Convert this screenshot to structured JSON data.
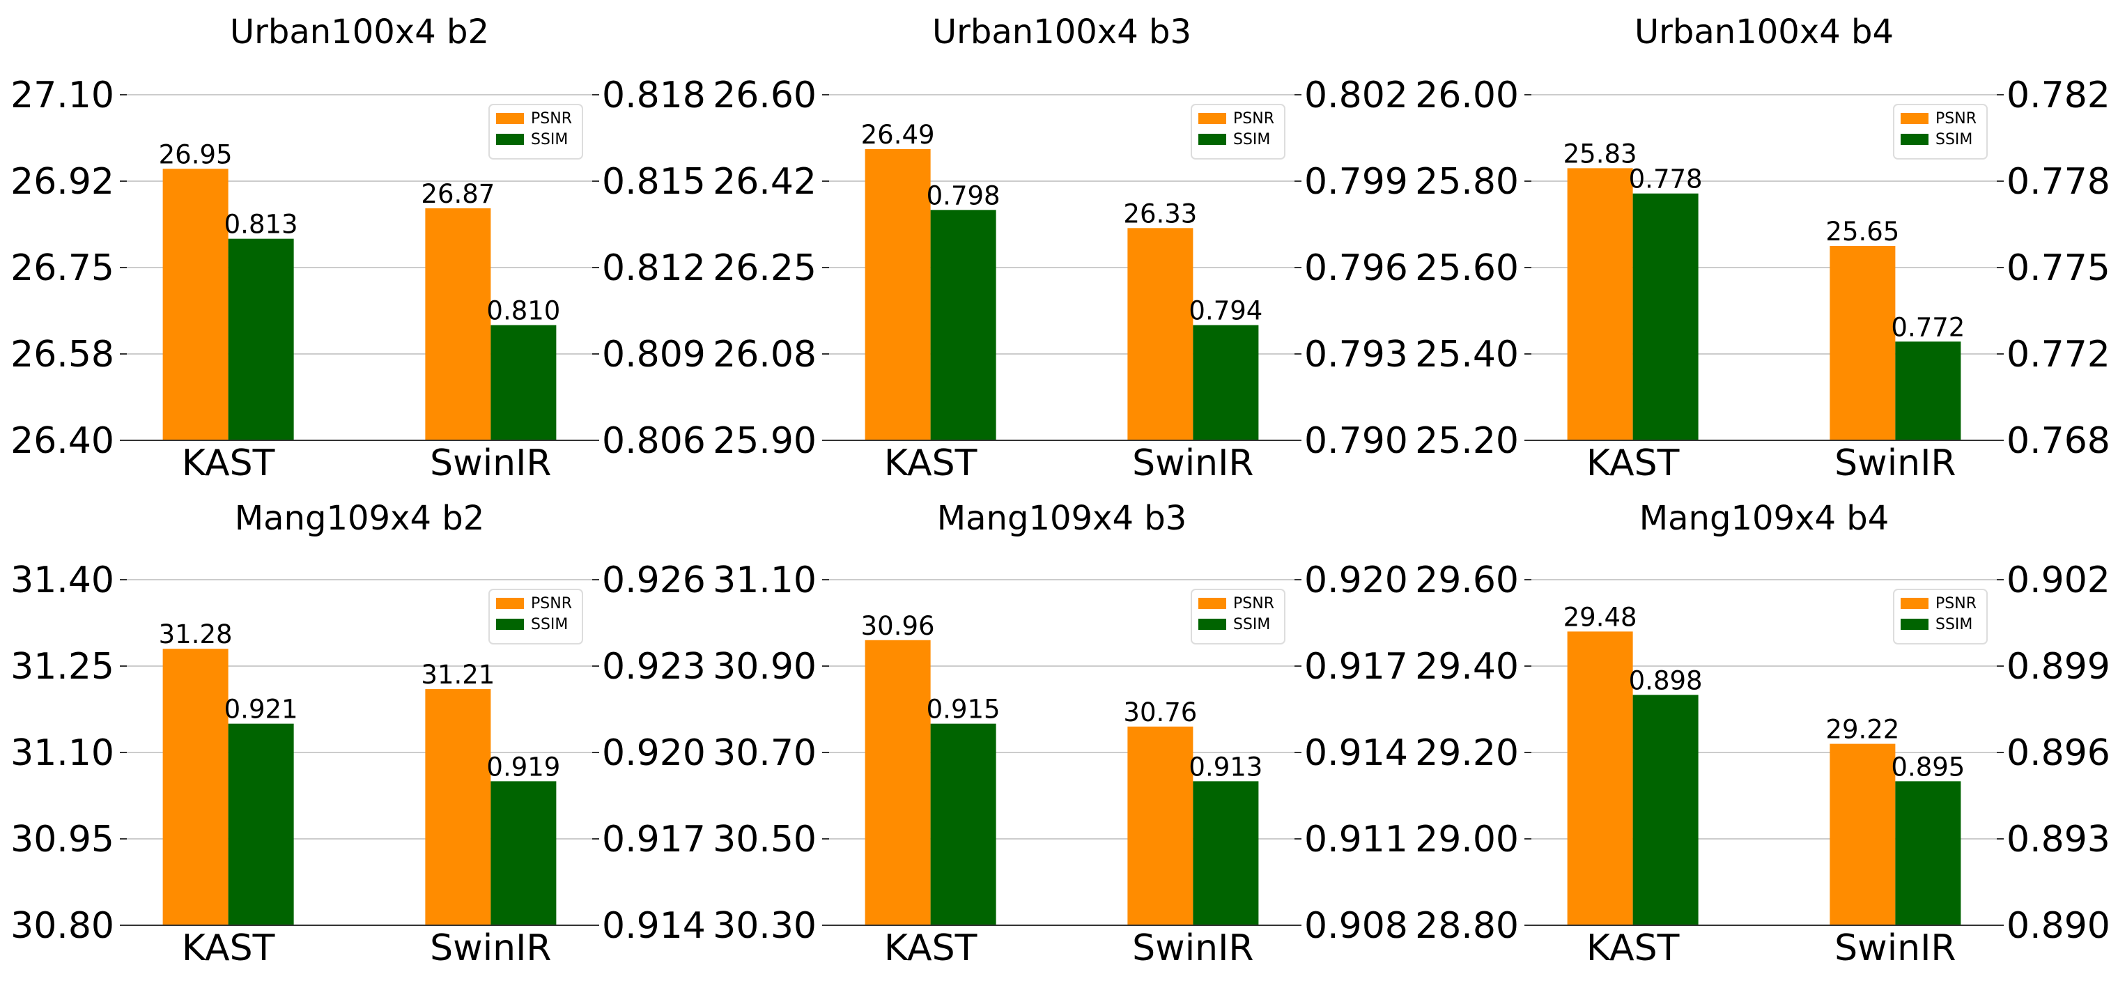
{
  "colors": {
    "psnr": "#ff8c00",
    "ssim": "#006400",
    "grid": "#cccccc",
    "axis": "#333333"
  },
  "chart_data": [
    {
      "type": "bar",
      "title": "Urban100x4 b2",
      "categories": [
        "KAST",
        "SwinIR"
      ],
      "series": [
        {
          "name": "PSNR",
          "axis": "left",
          "values": [
            26.95,
            26.87
          ],
          "labels": [
            "26.95",
            "26.87"
          ]
        },
        {
          "name": "SSIM",
          "axis": "right",
          "values": [
            0.813,
            0.81
          ],
          "labels": [
            "0.813",
            "0.810"
          ]
        }
      ],
      "left_axis": {
        "ylim": [
          26.4,
          27.1
        ],
        "ticks": [
          26.4,
          26.575,
          26.75,
          26.925,
          27.1
        ],
        "tick_labels": [
          "26.40",
          "26.58",
          "26.75",
          "26.92",
          "27.10"
        ]
      },
      "right_axis": {
        "ylim": [
          0.806,
          0.818
        ],
        "ticks": [
          0.806,
          0.809,
          0.812,
          0.815,
          0.818
        ],
        "tick_labels": [
          "0.806",
          "0.809",
          "0.812",
          "0.815",
          "0.818"
        ]
      },
      "legend": {
        "placement": "top-right",
        "entries": [
          "PSNR",
          "SSIM"
        ]
      }
    },
    {
      "type": "bar",
      "title": "Urban100x4 b3",
      "categories": [
        "KAST",
        "SwinIR"
      ],
      "series": [
        {
          "name": "PSNR",
          "axis": "left",
          "values": [
            26.49,
            26.33
          ],
          "labels": [
            "26.49",
            "26.33"
          ]
        },
        {
          "name": "SSIM",
          "axis": "right",
          "values": [
            0.798,
            0.794
          ],
          "labels": [
            "0.798",
            "0.794"
          ]
        }
      ],
      "left_axis": {
        "ylim": [
          25.9,
          26.6
        ],
        "ticks": [
          25.9,
          26.075,
          26.25,
          26.425,
          26.6
        ],
        "tick_labels": [
          "25.90",
          "26.08",
          "26.25",
          "26.42",
          "26.60"
        ]
      },
      "right_axis": {
        "ylim": [
          0.79,
          0.802
        ],
        "ticks": [
          0.79,
          0.793,
          0.796,
          0.799,
          0.802
        ],
        "tick_labels": [
          "0.790",
          "0.793",
          "0.796",
          "0.799",
          "0.802"
        ]
      },
      "legend": {
        "placement": "top-right",
        "entries": [
          "PSNR",
          "SSIM"
        ]
      }
    },
    {
      "type": "bar",
      "title": "Urban100x4 b4",
      "categories": [
        "KAST",
        "SwinIR"
      ],
      "series": [
        {
          "name": "PSNR",
          "axis": "left",
          "values": [
            25.83,
            25.65
          ],
          "labels": [
            "25.83",
            "25.65"
          ]
        },
        {
          "name": "SSIM",
          "axis": "right",
          "values": [
            0.778,
            0.772
          ],
          "labels": [
            "0.778",
            "0.772"
          ]
        }
      ],
      "left_axis": {
        "ylim": [
          25.2,
          26.0
        ],
        "ticks": [
          25.2,
          25.4,
          25.6,
          25.8,
          26.0
        ],
        "tick_labels": [
          "25.20",
          "25.40",
          "25.60",
          "25.80",
          "26.00"
        ]
      },
      "right_axis": {
        "ylim": [
          0.768,
          0.782
        ],
        "ticks": [
          0.768,
          0.7715,
          0.775,
          0.7785,
          0.782
        ],
        "tick_labels": [
          "0.768",
          "0.772",
          "0.775",
          "0.778",
          "0.782"
        ]
      },
      "legend": {
        "placement": "top-right",
        "entries": [
          "PSNR",
          "SSIM"
        ]
      }
    },
    {
      "type": "bar",
      "title": "Mang109x4 b2",
      "categories": [
        "KAST",
        "SwinIR"
      ],
      "series": [
        {
          "name": "PSNR",
          "axis": "left",
          "values": [
            31.28,
            31.21
          ],
          "labels": [
            "31.28",
            "31.21"
          ]
        },
        {
          "name": "SSIM",
          "axis": "right",
          "values": [
            0.921,
            0.919
          ],
          "labels": [
            "0.921",
            "0.919"
          ]
        }
      ],
      "left_axis": {
        "ylim": [
          30.8,
          31.4
        ],
        "ticks": [
          30.8,
          30.95,
          31.1,
          31.25,
          31.4
        ],
        "tick_labels": [
          "30.80",
          "30.95",
          "31.10",
          "31.25",
          "31.40"
        ]
      },
      "right_axis": {
        "ylim": [
          0.914,
          0.926
        ],
        "ticks": [
          0.914,
          0.917,
          0.92,
          0.923,
          0.926
        ],
        "tick_labels": [
          "0.914",
          "0.917",
          "0.920",
          "0.923",
          "0.926"
        ]
      },
      "legend": {
        "placement": "top-right",
        "entries": [
          "PSNR",
          "SSIM"
        ]
      }
    },
    {
      "type": "bar",
      "title": "Mang109x4 b3",
      "categories": [
        "KAST",
        "SwinIR"
      ],
      "series": [
        {
          "name": "PSNR",
          "axis": "left",
          "values": [
            30.96,
            30.76
          ],
          "labels": [
            "30.96",
            "30.76"
          ]
        },
        {
          "name": "SSIM",
          "axis": "right",
          "values": [
            0.915,
            0.913
          ],
          "labels": [
            "0.915",
            "0.913"
          ]
        }
      ],
      "left_axis": {
        "ylim": [
          30.3,
          31.1
        ],
        "ticks": [
          30.3,
          30.5,
          30.7,
          30.9,
          31.1
        ],
        "tick_labels": [
          "30.30",
          "30.50",
          "30.70",
          "30.90",
          "31.10"
        ]
      },
      "right_axis": {
        "ylim": [
          0.908,
          0.92
        ],
        "ticks": [
          0.908,
          0.911,
          0.914,
          0.917,
          0.92
        ],
        "tick_labels": [
          "0.908",
          "0.911",
          "0.914",
          "0.917",
          "0.920"
        ]
      },
      "legend": {
        "placement": "top-right",
        "entries": [
          "PSNR",
          "SSIM"
        ]
      }
    },
    {
      "type": "bar",
      "title": "Mang109x4 b4",
      "categories": [
        "KAST",
        "SwinIR"
      ],
      "series": [
        {
          "name": "PSNR",
          "axis": "left",
          "values": [
            29.48,
            29.22
          ],
          "labels": [
            "29.48",
            "29.22"
          ]
        },
        {
          "name": "SSIM",
          "axis": "right",
          "values": [
            0.898,
            0.895
          ],
          "labels": [
            "0.898",
            "0.895"
          ]
        }
      ],
      "left_axis": {
        "ylim": [
          28.8,
          29.6
        ],
        "ticks": [
          28.8,
          29.0,
          29.2,
          29.4,
          29.6
        ],
        "tick_labels": [
          "28.80",
          "29.00",
          "29.20",
          "29.40",
          "29.60"
        ]
      },
      "right_axis": {
        "ylim": [
          0.89,
          0.902
        ],
        "ticks": [
          0.89,
          0.893,
          0.896,
          0.899,
          0.902
        ],
        "tick_labels": [
          "0.890",
          "0.893",
          "0.896",
          "0.899",
          "0.902"
        ]
      },
      "legend": {
        "placement": "top-right",
        "entries": [
          "PSNR",
          "SSIM"
        ]
      }
    }
  ]
}
